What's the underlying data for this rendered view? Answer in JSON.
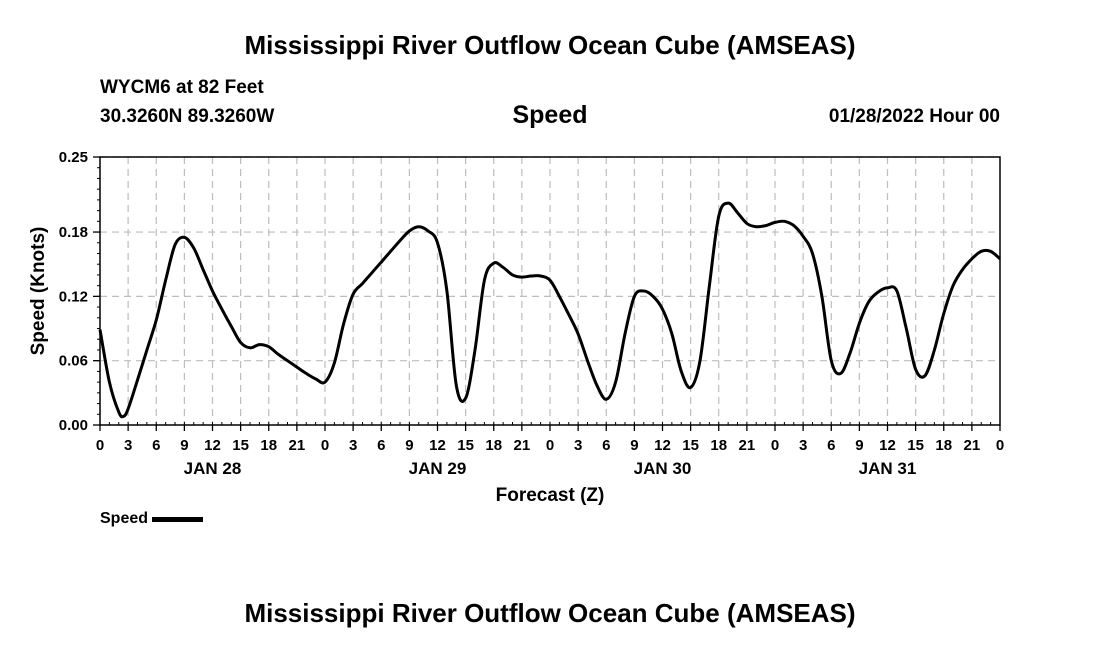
{
  "header": {
    "title": "Mississippi River Outflow Ocean Cube (AMSEAS)",
    "station": "WYCM6 at 82 Feet",
    "coords": "30.3260N  89.3260W",
    "panel_title": "Speed",
    "date_hour": "01/28/2022 Hour 00"
  },
  "footer": {
    "title": "Mississippi River Outflow Ocean Cube (AMSEAS)"
  },
  "legend": {
    "label": "Speed"
  },
  "chart_data": {
    "type": "line",
    "title": "Speed",
    "xlabel": "Forecast (Z)",
    "ylabel": "Speed (Knots)",
    "xlim": [
      0,
      96
    ],
    "ylim": [
      0,
      0.25
    ],
    "y_ticks": [
      "0.00",
      "0.06",
      "0.12",
      "0.18",
      "0.25"
    ],
    "y_tick_values": [
      0,
      0.06,
      0.12,
      0.18,
      0.25
    ],
    "x_ticks": [
      {
        "h": 0,
        "label": "0"
      },
      {
        "h": 3,
        "label": "3"
      },
      {
        "h": 6,
        "label": "6"
      },
      {
        "h": 9,
        "label": "9"
      },
      {
        "h": 12,
        "label": "12"
      },
      {
        "h": 15,
        "label": "15"
      },
      {
        "h": 18,
        "label": "18"
      },
      {
        "h": 21,
        "label": "21"
      },
      {
        "h": 24,
        "label": "0"
      },
      {
        "h": 27,
        "label": "3"
      },
      {
        "h": 30,
        "label": "6"
      },
      {
        "h": 33,
        "label": "9"
      },
      {
        "h": 36,
        "label": "12"
      },
      {
        "h": 39,
        "label": "15"
      },
      {
        "h": 42,
        "label": "18"
      },
      {
        "h": 45,
        "label": "21"
      },
      {
        "h": 48,
        "label": "0"
      },
      {
        "h": 51,
        "label": "3"
      },
      {
        "h": 54,
        "label": "6"
      },
      {
        "h": 57,
        "label": "9"
      },
      {
        "h": 60,
        "label": "12"
      },
      {
        "h": 63,
        "label": "15"
      },
      {
        "h": 66,
        "label": "18"
      },
      {
        "h": 69,
        "label": "21"
      },
      {
        "h": 72,
        "label": "0"
      },
      {
        "h": 75,
        "label": "3"
      },
      {
        "h": 78,
        "label": "6"
      },
      {
        "h": 81,
        "label": "9"
      },
      {
        "h": 84,
        "label": "12"
      },
      {
        "h": 87,
        "label": "15"
      },
      {
        "h": 90,
        "label": "18"
      },
      {
        "h": 93,
        "label": "21"
      },
      {
        "h": 96,
        "label": "0"
      }
    ],
    "day_labels": [
      {
        "h": 12,
        "label": "JAN 28"
      },
      {
        "h": 36,
        "label": "JAN 29"
      },
      {
        "h": 60,
        "label": "JAN 30"
      },
      {
        "h": 84,
        "label": "JAN 31"
      }
    ],
    "grid": true,
    "legend_position": "bottom-left",
    "series": [
      {
        "name": "Speed",
        "color": "#000000",
        "x": [
          0,
          1,
          2,
          2.5,
          3,
          4,
          5,
          6,
          7,
          8,
          9,
          10,
          11,
          12,
          13,
          14,
          15,
          16,
          17,
          18,
          19,
          20,
          21,
          22,
          23,
          24,
          25,
          26,
          27,
          28,
          29,
          30,
          31,
          32,
          33,
          34,
          35,
          36,
          37,
          38,
          39,
          40,
          41,
          42,
          43,
          44,
          45,
          46,
          47,
          48,
          49,
          50,
          51,
          52,
          53,
          54,
          55,
          56,
          57,
          58,
          59,
          60,
          61,
          62,
          63,
          64,
          65,
          66,
          67,
          68,
          69,
          70,
          71,
          72,
          73,
          74,
          75,
          76,
          77,
          78,
          79,
          80,
          81,
          82,
          83,
          84,
          85,
          86,
          87,
          88,
          89,
          90,
          91,
          92,
          93,
          94,
          95,
          96
        ],
        "y": [
          0.089,
          0.04,
          0.012,
          0.008,
          0.015,
          0.042,
          0.07,
          0.098,
          0.135,
          0.168,
          0.175,
          0.165,
          0.145,
          0.125,
          0.108,
          0.092,
          0.077,
          0.072,
          0.075,
          0.073,
          0.066,
          0.06,
          0.054,
          0.048,
          0.043,
          0.04,
          0.058,
          0.095,
          0.122,
          0.132,
          0.142,
          0.152,
          0.162,
          0.172,
          0.181,
          0.185,
          0.181,
          0.17,
          0.125,
          0.037,
          0.025,
          0.07,
          0.135,
          0.151,
          0.147,
          0.14,
          0.138,
          0.139,
          0.139,
          0.135,
          0.12,
          0.103,
          0.085,
          0.06,
          0.037,
          0.024,
          0.04,
          0.085,
          0.12,
          0.125,
          0.12,
          0.108,
          0.085,
          0.05,
          0.035,
          0.06,
          0.13,
          0.195,
          0.207,
          0.198,
          0.188,
          0.185,
          0.186,
          0.189,
          0.19,
          0.186,
          0.176,
          0.16,
          0.12,
          0.06,
          0.048,
          0.067,
          0.095,
          0.115,
          0.124,
          0.128,
          0.125,
          0.09,
          0.052,
          0.046,
          0.07,
          0.104,
          0.13,
          0.145,
          0.155,
          0.162,
          0.162,
          0.155
        ]
      }
    ]
  }
}
